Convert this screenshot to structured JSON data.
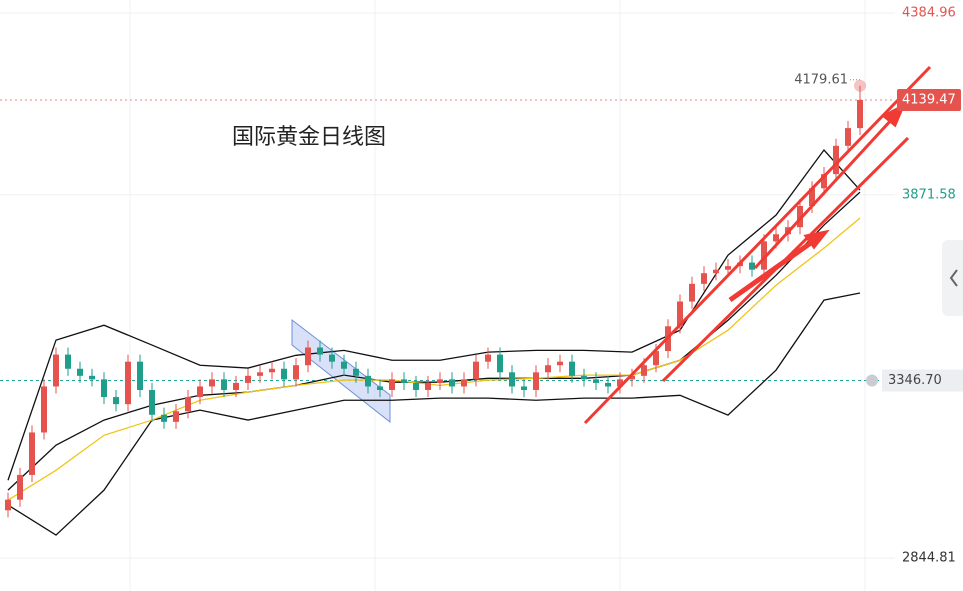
{
  "chart_data": {
    "type": "candlestick",
    "title": "国际黄金日线图",
    "up_color": "#e5534f",
    "down_color": "#1f9e8c",
    "ylim": [
      2752,
      4422
    ],
    "yticks": [
      4384.96,
      3871.58,
      2844.81
    ],
    "ytick_colors": [
      "#e5534f",
      "#1f9e8c",
      "#333333"
    ],
    "price_line": {
      "value": 3346.7,
      "label": "3346.70",
      "color": "#26a69a"
    },
    "open": [
      2980,
      3010,
      3080,
      3200,
      3330,
      3420,
      3380,
      3360,
      3350,
      3300,
      3280,
      3400,
      3320,
      3250,
      3230,
      3260,
      3300,
      3330,
      3350,
      3320,
      3340,
      3360,
      3370,
      3380,
      3350,
      3390,
      3440,
      3420,
      3400,
      3380,
      3360,
      3330,
      3320,
      3350,
      3340,
      3320,
      3340,
      3350,
      3330,
      3350,
      3400,
      3420,
      3370,
      3330,
      3320,
      3370,
      3390,
      3400,
      3360,
      3350,
      3340,
      3330,
      3350,
      3360,
      3390,
      3430,
      3500,
      3570,
      3620,
      3650,
      3660,
      3670,
      3680,
      3660,
      3740,
      3760,
      3780,
      3840,
      3890,
      3930,
      4010,
      4060
    ],
    "high": [
      3030,
      3100,
      3220,
      3350,
      3440,
      3440,
      3400,
      3380,
      3370,
      3320,
      3420,
      3420,
      3340,
      3270,
      3280,
      3320,
      3350,
      3370,
      3370,
      3360,
      3380,
      3390,
      3400,
      3400,
      3410,
      3460,
      3460,
      3440,
      3420,
      3400,
      3380,
      3350,
      3370,
      3370,
      3360,
      3360,
      3370,
      3370,
      3370,
      3420,
      3440,
      3440,
      3390,
      3350,
      3390,
      3410,
      3420,
      3420,
      3380,
      3370,
      3360,
      3370,
      3380,
      3410,
      3450,
      3520,
      3590,
      3640,
      3670,
      3680,
      3690,
      3700,
      3700,
      3760,
      3780,
      3800,
      3860,
      3910,
      3950,
      4030,
      4080,
      4179.61
    ],
    "low": [
      2960,
      2990,
      3060,
      3180,
      3310,
      3360,
      3340,
      3330,
      3280,
      3260,
      3260,
      3300,
      3230,
      3210,
      3210,
      3240,
      3280,
      3310,
      3300,
      3300,
      3320,
      3340,
      3350,
      3330,
      3330,
      3370,
      3400,
      3380,
      3360,
      3340,
      3310,
      3300,
      3300,
      3320,
      3300,
      3300,
      3320,
      3310,
      3310,
      3330,
      3380,
      3350,
      3310,
      3300,
      3300,
      3350,
      3370,
      3340,
      3330,
      3320,
      3310,
      3310,
      3330,
      3340,
      3370,
      3410,
      3480,
      3550,
      3600,
      3630,
      3640,
      3650,
      3640,
      3640,
      3720,
      3740,
      3760,
      3820,
      3870,
      3910,
      3990,
      4040
    ],
    "close": [
      3010,
      3080,
      3200,
      3330,
      3420,
      3380,
      3360,
      3350,
      3300,
      3280,
      3400,
      3320,
      3250,
      3230,
      3260,
      3300,
      3330,
      3350,
      3320,
      3340,
      3360,
      3370,
      3380,
      3350,
      3390,
      3440,
      3420,
      3400,
      3380,
      3360,
      3330,
      3320,
      3350,
      3340,
      3320,
      3340,
      3350,
      3330,
      3350,
      3400,
      3420,
      3370,
      3330,
      3320,
      3370,
      3390,
      3400,
      3360,
      3350,
      3340,
      3330,
      3350,
      3360,
      3390,
      3430,
      3500,
      3570,
      3620,
      3650,
      3660,
      3670,
      3680,
      3660,
      3740,
      3760,
      3780,
      3840,
      3890,
      3930,
      4010,
      4060,
      4139.47
    ],
    "bands": [
      {
        "color": "#111111",
        "x": [
          0,
          4,
          8,
          12,
          16,
          20,
          24,
          28,
          32,
          36,
          40,
          44,
          48,
          52,
          56,
          60,
          64,
          68,
          71
        ],
        "values": [
          3065,
          3461,
          3503,
          3447,
          3390,
          3382,
          3418,
          3432,
          3404,
          3404,
          3427,
          3432,
          3432,
          3427,
          3489,
          3701,
          3814,
          3998,
          3885
        ]
      },
      {
        "color": "#111111",
        "x": [
          0,
          4,
          8,
          12,
          16,
          20,
          24,
          28,
          32,
          36,
          40,
          44,
          48,
          52,
          56,
          60,
          64,
          68,
          71
        ],
        "values": [
          3037,
          3164,
          3235,
          3277,
          3305,
          3314,
          3333,
          3362,
          3342,
          3342,
          3353,
          3353,
          3353,
          3362,
          3404,
          3517,
          3644,
          3786,
          3879
        ]
      },
      {
        "color": "#111111",
        "x": [
          0,
          4,
          8,
          12,
          16,
          20,
          24,
          28,
          32,
          36,
          40,
          44,
          48,
          52,
          56,
          60,
          64,
          68,
          71
        ],
        "values": [
          2995,
          2910,
          3037,
          3235,
          3263,
          3235,
          3263,
          3291,
          3291,
          3297,
          3297,
          3291,
          3297,
          3297,
          3305,
          3249,
          3376,
          3574,
          3594
        ]
      },
      {
        "color": "#f2c417",
        "x": [
          0,
          4,
          8,
          12,
          16,
          20,
          24,
          28,
          32,
          36,
          40,
          44,
          48,
          52,
          56,
          60,
          64,
          68,
          71
        ],
        "values": [
          3009,
          3093,
          3192,
          3235,
          3291,
          3314,
          3333,
          3348,
          3348,
          3333,
          3348,
          3353,
          3362,
          3362,
          3404,
          3489,
          3616,
          3721,
          3806
        ]
      }
    ]
  }
}
